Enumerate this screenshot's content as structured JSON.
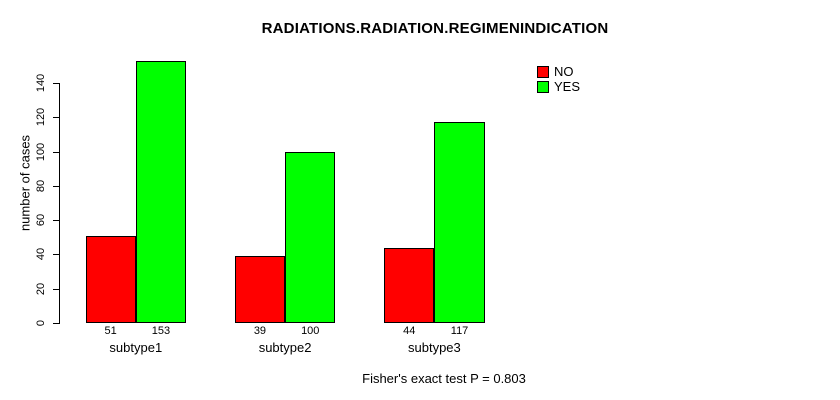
{
  "title": "RADIATIONS.RADIATION.REGIMENINDICATION",
  "footer": "Fisher's exact test P = 0.803",
  "chart_data": {
    "type": "bar",
    "title": "RADIATIONS.RADIATION.REGIMENINDICATION",
    "xlabel": "",
    "ylabel": "number of cases",
    "categories": [
      "subtype1",
      "subtype2",
      "subtype3"
    ],
    "series": [
      {
        "name": "NO",
        "color": "#ff0000",
        "values": [
          51,
          39,
          44
        ]
      },
      {
        "name": "YES",
        "color": "#00ff00",
        "values": [
          153,
          100,
          117
        ]
      }
    ],
    "yticks": [
      0,
      20,
      40,
      60,
      80,
      100,
      120,
      140
    ],
    "ylim": [
      0,
      153
    ],
    "grid": false,
    "bar_value_labels_shown": true,
    "legend_position": "top-right",
    "annotation": "Fisher's exact test P = 0.803"
  }
}
